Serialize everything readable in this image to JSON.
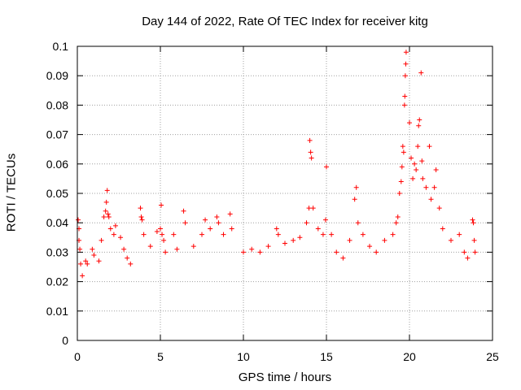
{
  "chart_data": {
    "type": "scatter",
    "title": "Day 144 of 2022, Rate Of TEC Index for receiver kitg",
    "xlabel": "GPS time / hours",
    "ylabel": "ROTI / TECUs",
    "xlim": [
      0,
      25
    ],
    "ylim": [
      0,
      0.1
    ],
    "x_ticks": [
      0,
      5,
      10,
      15,
      20,
      25
    ],
    "y_ticks": [
      0,
      0.01,
      0.02,
      0.03,
      0.04,
      0.05,
      0.06,
      0.07,
      0.08,
      0.09,
      0.1
    ],
    "x_tick_labels": [
      "0",
      "5",
      "10",
      "15",
      "20",
      "25"
    ],
    "y_tick_labels": [
      "0",
      "0.01",
      "0.02",
      "0.03",
      "0.04",
      "0.05",
      "0.06",
      "0.07",
      "0.08",
      "0.09",
      "0.1"
    ],
    "grid": true,
    "marker": "+",
    "color": "#ff0000",
    "series": [
      {
        "name": "ROTI",
        "points": [
          [
            0.05,
            0.041
          ],
          [
            0.1,
            0.038
          ],
          [
            0.1,
            0.034
          ],
          [
            0.15,
            0.031
          ],
          [
            0.2,
            0.026
          ],
          [
            0.3,
            0.022
          ],
          [
            0.5,
            0.027
          ],
          [
            0.6,
            0.026
          ],
          [
            0.9,
            0.031
          ],
          [
            1.0,
            0.029
          ],
          [
            1.3,
            0.027
          ],
          [
            1.45,
            0.034
          ],
          [
            1.6,
            0.042
          ],
          [
            1.7,
            0.044
          ],
          [
            1.75,
            0.047
          ],
          [
            1.8,
            0.051
          ],
          [
            1.85,
            0.043
          ],
          [
            1.9,
            0.042
          ],
          [
            2.0,
            0.038
          ],
          [
            2.2,
            0.036
          ],
          [
            2.3,
            0.039
          ],
          [
            2.6,
            0.035
          ],
          [
            2.8,
            0.031
          ],
          [
            3.0,
            0.028
          ],
          [
            3.2,
            0.026
          ],
          [
            3.8,
            0.045
          ],
          [
            3.85,
            0.042
          ],
          [
            3.9,
            0.041
          ],
          [
            4.0,
            0.036
          ],
          [
            4.4,
            0.032
          ],
          [
            4.8,
            0.037
          ],
          [
            5.0,
            0.038
          ],
          [
            5.05,
            0.046
          ],
          [
            5.1,
            0.036
          ],
          [
            5.2,
            0.034
          ],
          [
            5.3,
            0.03
          ],
          [
            5.8,
            0.036
          ],
          [
            6.0,
            0.031
          ],
          [
            6.4,
            0.044
          ],
          [
            6.5,
            0.04
          ],
          [
            7.0,
            0.032
          ],
          [
            7.5,
            0.036
          ],
          [
            7.7,
            0.041
          ],
          [
            8.0,
            0.038
          ],
          [
            8.4,
            0.042
          ],
          [
            8.5,
            0.04
          ],
          [
            8.8,
            0.036
          ],
          [
            9.2,
            0.043
          ],
          [
            9.3,
            0.038
          ],
          [
            10.0,
            0.03
          ],
          [
            10.5,
            0.031
          ],
          [
            11.0,
            0.03
          ],
          [
            11.5,
            0.032
          ],
          [
            12.0,
            0.038
          ],
          [
            12.1,
            0.036
          ],
          [
            12.5,
            0.033
          ],
          [
            13.0,
            0.034
          ],
          [
            13.4,
            0.035
          ],
          [
            13.8,
            0.04
          ],
          [
            13.95,
            0.045
          ],
          [
            14.0,
            0.068
          ],
          [
            14.05,
            0.064
          ],
          [
            14.1,
            0.062
          ],
          [
            14.2,
            0.045
          ],
          [
            14.5,
            0.038
          ],
          [
            14.8,
            0.036
          ],
          [
            15.0,
            0.059
          ],
          [
            14.95,
            0.041
          ],
          [
            15.3,
            0.036
          ],
          [
            15.6,
            0.03
          ],
          [
            16.0,
            0.028
          ],
          [
            16.4,
            0.034
          ],
          [
            16.7,
            0.048
          ],
          [
            16.8,
            0.052
          ],
          [
            16.9,
            0.04
          ],
          [
            17.2,
            0.036
          ],
          [
            17.6,
            0.032
          ],
          [
            18.0,
            0.03
          ],
          [
            18.5,
            0.034
          ],
          [
            19.0,
            0.036
          ],
          [
            19.2,
            0.04
          ],
          [
            19.3,
            0.042
          ],
          [
            19.4,
            0.05
          ],
          [
            19.5,
            0.054
          ],
          [
            19.55,
            0.059
          ],
          [
            19.6,
            0.066
          ],
          [
            19.65,
            0.064
          ],
          [
            19.7,
            0.08
          ],
          [
            19.72,
            0.083
          ],
          [
            19.75,
            0.09
          ],
          [
            19.78,
            0.094
          ],
          [
            19.8,
            0.098
          ],
          [
            20.0,
            0.074
          ],
          [
            20.1,
            0.062
          ],
          [
            20.2,
            0.055
          ],
          [
            20.3,
            0.06
          ],
          [
            20.4,
            0.058
          ],
          [
            20.5,
            0.066
          ],
          [
            20.55,
            0.073
          ],
          [
            20.6,
            0.075
          ],
          [
            20.7,
            0.091
          ],
          [
            20.75,
            0.061
          ],
          [
            20.8,
            0.055
          ],
          [
            21.0,
            0.052
          ],
          [
            21.2,
            0.066
          ],
          [
            21.3,
            0.048
          ],
          [
            21.5,
            0.052
          ],
          [
            21.6,
            0.058
          ],
          [
            21.8,
            0.045
          ],
          [
            22.0,
            0.038
          ],
          [
            22.5,
            0.034
          ],
          [
            23.0,
            0.036
          ],
          [
            23.3,
            0.03
          ],
          [
            23.5,
            0.028
          ],
          [
            23.8,
            0.041
          ],
          [
            23.85,
            0.04
          ],
          [
            23.9,
            0.034
          ],
          [
            23.95,
            0.03
          ]
        ]
      }
    ]
  }
}
